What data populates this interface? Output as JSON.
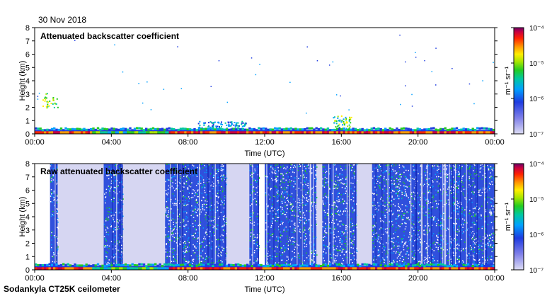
{
  "date_label": "30 Nov 2018",
  "footer_label": "Sodankyla CT25K ceilometer",
  "chart_data": [
    {
      "type": "heatmap",
      "title": "Attenuated backscatter coefficient",
      "xlabel": "Time (UTC)",
      "ylabel": "Height (km)",
      "xlim": [
        0,
        24
      ],
      "ylim": [
        0,
        8
      ],
      "x_ticks": [
        "00:00",
        "04:00",
        "08:00",
        "12:00",
        "16:00",
        "20:00",
        "00:00"
      ],
      "y_ticks": [
        "0",
        "1",
        "2",
        "3",
        "4",
        "5",
        "6",
        "7",
        "8"
      ],
      "colorbar": {
        "label": "m⁻¹ sr⁻¹",
        "ticks": [
          "10⁻⁴",
          "10⁻⁵",
          "10⁻⁶",
          "10⁻⁷"
        ],
        "range": [
          1e-07,
          0.0001
        ],
        "scale": "log"
      },
      "features": {
        "boundary_layer_top_km": 0.3,
        "elevated_layer_hours": [
          8.5,
          11.0
        ],
        "elevated_layer_top_km": 1.0,
        "plume_hour": 16.0,
        "plume_top_km": 1.4,
        "sparse_echo_cluster_hours": [
          0.3,
          1.2
        ],
        "sparse_echo_cluster_km": [
          2.0,
          3.1
        ]
      }
    },
    {
      "type": "heatmap",
      "title": "Raw attenuated backscatter coefficient",
      "xlabel": "Time (UTC)",
      "ylabel": "Height (km)",
      "xlim": [
        0,
        24
      ],
      "ylim": [
        0,
        8
      ],
      "x_ticks": [
        "00:00",
        "04:00",
        "08:00",
        "12:00",
        "16:00",
        "20:00",
        "00:00"
      ],
      "y_ticks": [
        "0",
        "1",
        "2",
        "3",
        "4",
        "5",
        "6",
        "7",
        "8"
      ],
      "colorbar": {
        "label": "m⁻¹ sr⁻¹",
        "ticks": [
          "10⁻⁴",
          "10⁻⁵",
          "10⁻⁶",
          "10⁻⁷"
        ],
        "range": [
          1e-07,
          0.0001
        ],
        "scale": "log"
      },
      "features": {
        "noisy_column_hours": [
          [
            0.8,
            1.2
          ],
          [
            3.6,
            4.6
          ],
          [
            6.8,
            10.0
          ],
          [
            11.2,
            11.7
          ],
          [
            12.0,
            14.7
          ],
          [
            15.0,
            16.8
          ],
          [
            17.6,
            24.0
          ]
        ],
        "quiet_column_hours": [
          [
            1.2,
            3.6
          ],
          [
            4.6,
            6.8
          ],
          [
            10.0,
            11.2
          ],
          [
            14.7,
            15.0
          ],
          [
            16.8,
            17.6
          ]
        ],
        "boundary_layer_top_km": 0.3
      }
    }
  ]
}
